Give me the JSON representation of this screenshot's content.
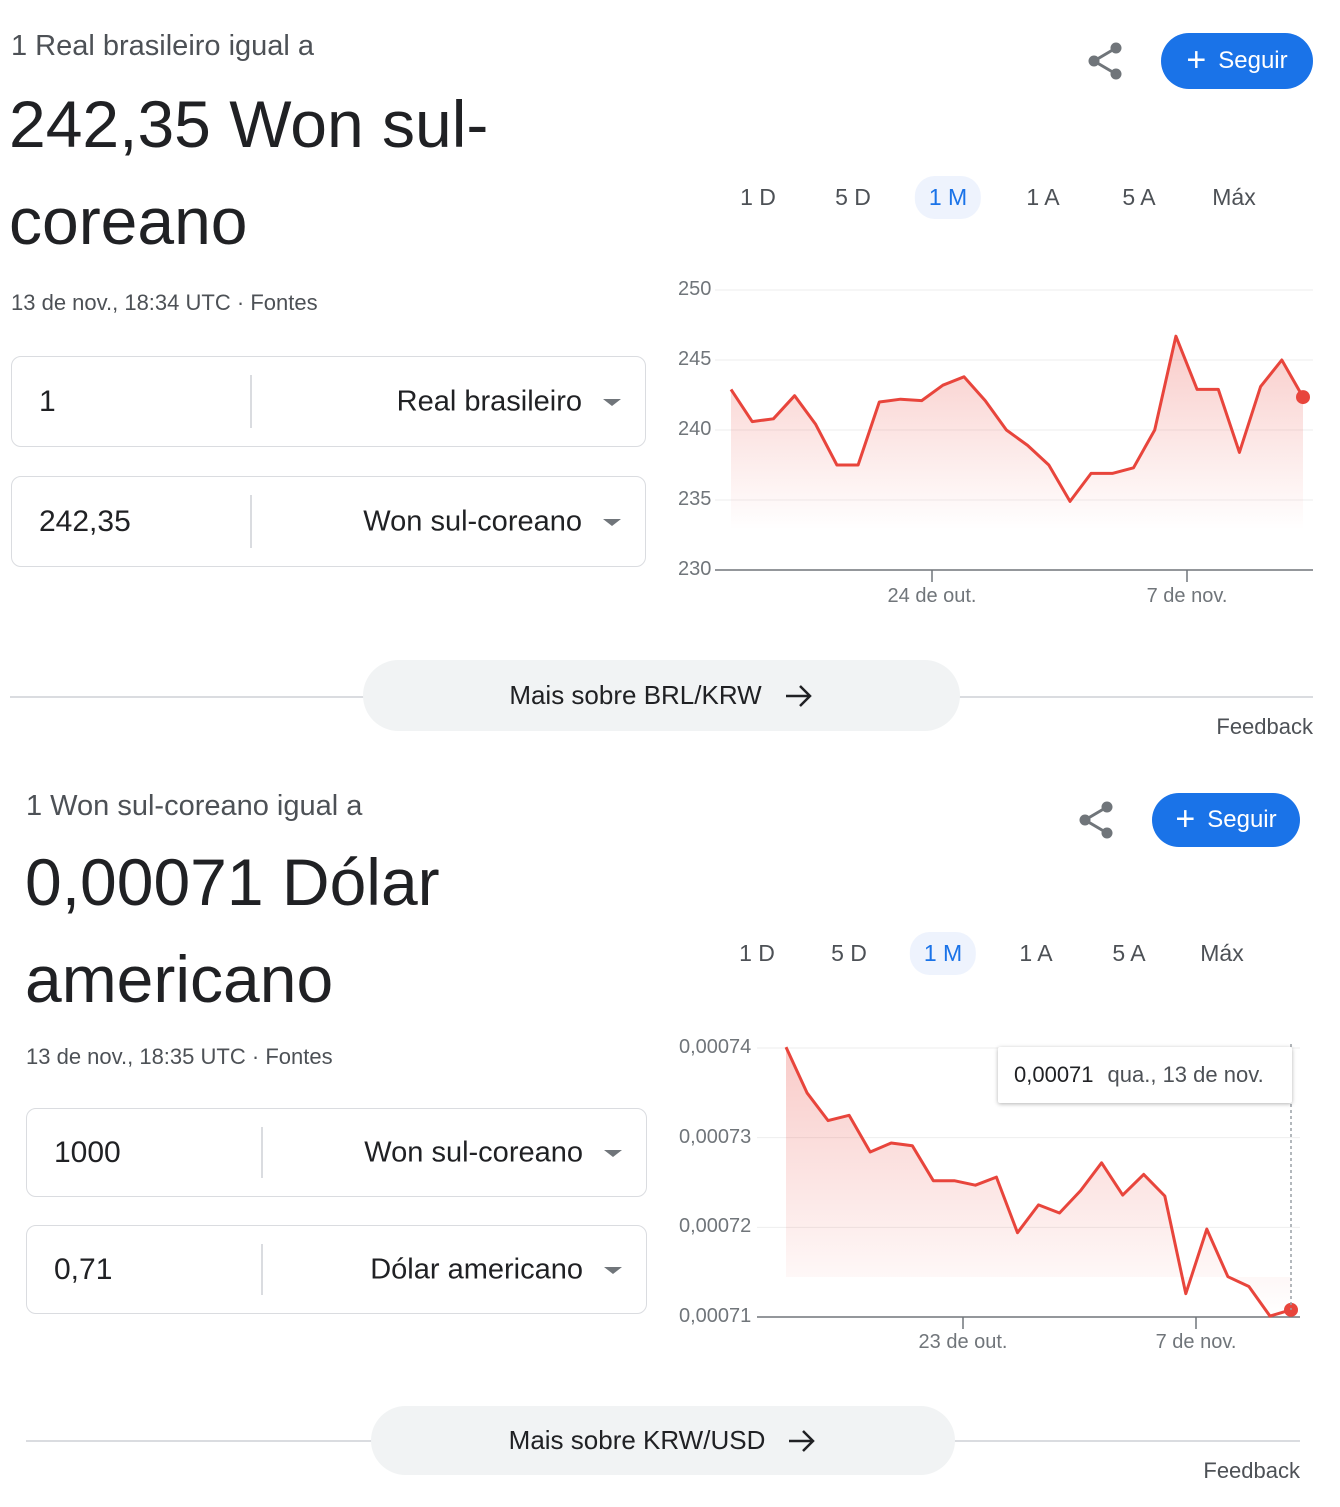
{
  "widgets": [
    {
      "subtitle": "1 Real brasileiro igual a",
      "result_line1": "242,35 Won sul-",
      "result_line2": "coreano",
      "timestamp": "13 de nov., 18:34 UTC",
      "separator": "·",
      "sources": "Fontes",
      "follow_label": "Seguir",
      "input_from": {
        "value": "1",
        "currency": "Real brasileiro"
      },
      "input_to": {
        "value": "242,35",
        "currency": "Won sul-coreano"
      },
      "tabs": [
        "1 D",
        "5 D",
        "1 M",
        "1 A",
        "5 A",
        "Máx"
      ],
      "active_tab": "1 M",
      "more_label": "Mais sobre BRL/KRW",
      "feedback": "Feedback"
    },
    {
      "subtitle": "1 Won sul-coreano igual a",
      "result_line1": "0,00071 Dólar",
      "result_line2": "americano",
      "timestamp": "13 de nov., 18:35 UTC",
      "separator": "·",
      "sources": "Fontes",
      "follow_label": "Seguir",
      "input_from": {
        "value": "1000",
        "currency": "Won sul-coreano"
      },
      "input_to": {
        "value": "0,71",
        "currency": "Dólar americano"
      },
      "tabs": [
        "1 D",
        "5 D",
        "1 M",
        "1 A",
        "5 A",
        "Máx"
      ],
      "active_tab": "1 M",
      "more_label": "Mais sobre KRW/USD",
      "feedback": "Feedback",
      "tooltip": {
        "value": "0,00071",
        "date": "qua., 13 de nov."
      }
    }
  ],
  "colors": {
    "accent": "#1a73e8",
    "line": "#e8453c",
    "active_tab_bg": "#eef3fd"
  },
  "chart_data": [
    {
      "type": "area",
      "ylim": [
        230,
        250
      ],
      "yticks": [
        "250",
        "245",
        "240",
        "235",
        "230"
      ],
      "ytick_values": [
        250,
        245,
        240,
        235,
        230
      ],
      "xticks": [
        {
          "label": "24 de out.",
          "index": 9.5
        },
        {
          "label": "7 de nov.",
          "index": 21.5
        }
      ],
      "values": [
        242.9,
        240.6,
        240.8,
        242.45,
        240.4,
        237.5,
        237.5,
        242.0,
        242.2,
        242.1,
        243.2,
        243.8,
        242.1,
        240.0,
        238.9,
        237.5,
        234.9,
        236.9,
        236.9,
        237.3,
        240.0,
        246.7,
        242.9,
        242.9,
        238.4,
        243.1,
        245.0,
        242.35
      ],
      "grid": true
    },
    {
      "type": "area",
      "ylim": [
        0.00071,
        0.00074
      ],
      "yticks": [
        "0,00074",
        "0,00073",
        "0,00072",
        "0,00071"
      ],
      "ytick_values": [
        0.00074,
        0.00073,
        0.00072,
        0.00071
      ],
      "xticks": [
        {
          "label": "23 de out.",
          "index": 8.45
        },
        {
          "label": "7 de nov.",
          "index": 19.5
        }
      ],
      "values": [
        0.0007401,
        0.000735,
        0.0007319,
        0.0007325,
        0.0007284,
        0.0007294,
        0.0007291,
        0.0007252,
        0.0007252,
        0.0007247,
        0.0007256,
        0.0007194,
        0.0007225,
        0.0007216,
        0.0007241,
        0.0007272,
        0.0007236,
        0.0007259,
        0.0007235,
        0.0007126,
        0.0007198,
        0.0007145,
        0.0007134,
        0.0007101,
        0.0007108
      ],
      "grid": true
    }
  ]
}
